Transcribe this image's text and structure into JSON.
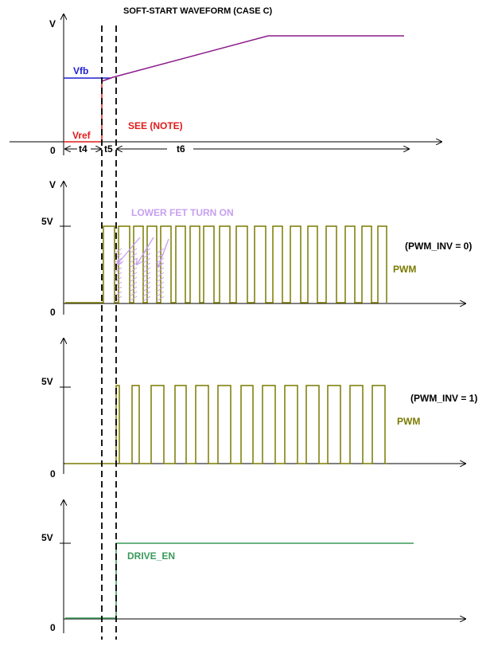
{
  "title": "SOFT-START WAVEFORM (CASE C)",
  "colors": {
    "axis": "#000000",
    "vfb": "#1f1fd0",
    "vref": "#e01b1b",
    "ramp": "#8b1c8b",
    "pwm": "#7a7a00",
    "lower_fet": "#c7a0f0",
    "drive_en": "#3a9a5a"
  },
  "panel1": {
    "y_axis_label": "V",
    "origin_label": "0",
    "vfb_label": "Vfb",
    "vref_label": "Vref",
    "note_label": "SEE (NOTE)",
    "t4_label": "t4",
    "t5_label": "t5",
    "t6_label": "t6"
  },
  "panel2": {
    "y_axis_label": "V",
    "level_label": "5V",
    "origin_label": "0",
    "annotation": "LOWER FET TURN ON",
    "mode_label": "(PWM_INV = 0)",
    "signal_label": "PWM"
  },
  "panel3": {
    "level_label": "5V",
    "origin_label": "0",
    "mode_label": "(PWM_INV = 1)",
    "signal_label": "PWM"
  },
  "panel4": {
    "level_label": "5V",
    "origin_label": "0",
    "signal_label": "DRIVE_EN"
  }
}
